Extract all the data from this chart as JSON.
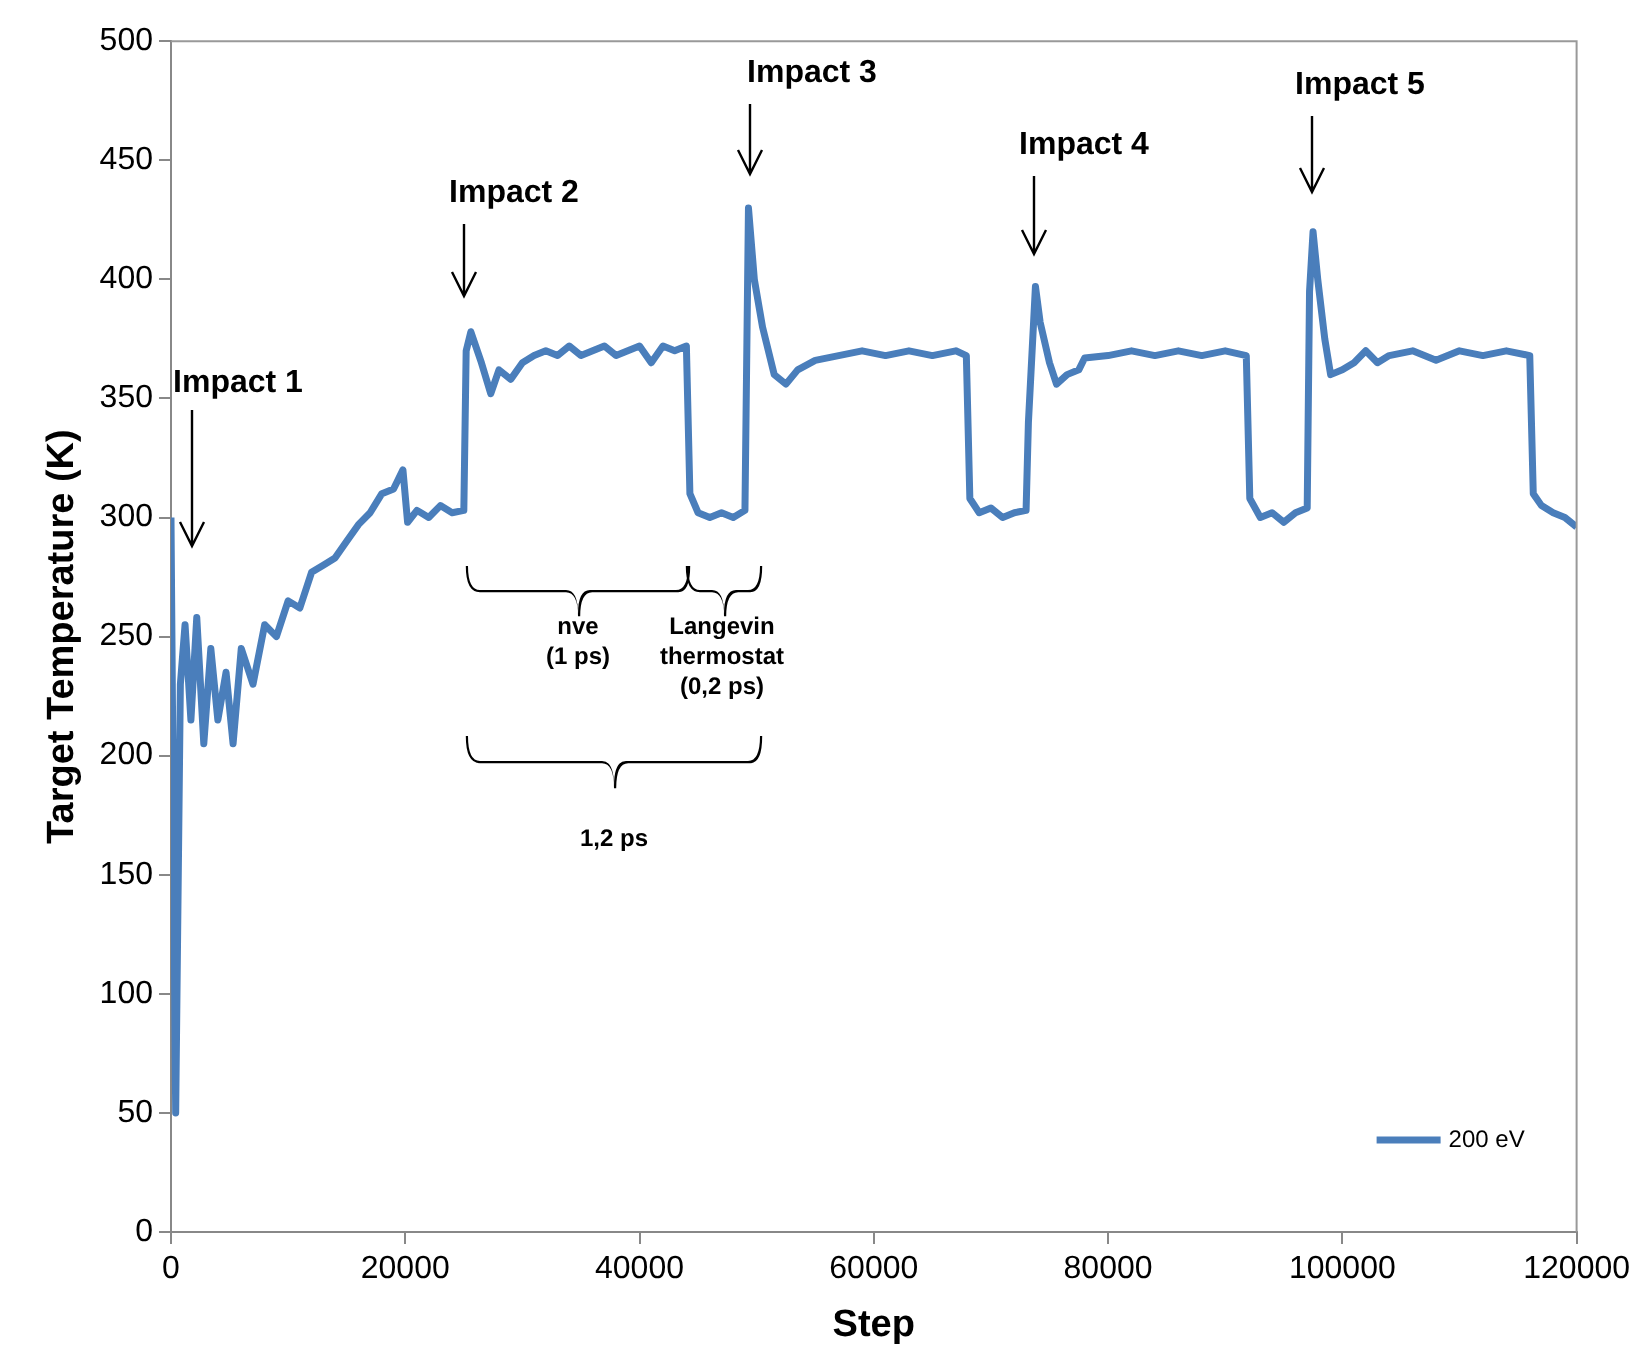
{
  "chart_data": {
    "type": "line",
    "xlabel": "Step",
    "ylabel": "Target Temperature (K)",
    "xlim": [
      0,
      120000
    ],
    "xticks": [
      0,
      20000,
      40000,
      60000,
      80000,
      100000,
      120000
    ],
    "ylim": [
      0,
      500
    ],
    "yticks": [
      0,
      50,
      100,
      150,
      200,
      250,
      300,
      350,
      400,
      450,
      500
    ],
    "grid": false,
    "legend": "bottom right",
    "marker": "none",
    "line_style": "solid",
    "x": [
      0,
      400,
      800,
      1200,
      1700,
      2200,
      2800,
      3400,
      4000,
      4700,
      5300,
      6000,
      7000,
      8000,
      9000,
      10000,
      11000,
      12000,
      13000,
      14000,
      15000,
      16000,
      17000,
      18000,
      19000,
      19800,
      20200,
      21000,
      22000,
      23000,
      24000,
      25000,
      25200,
      25600,
      26500,
      27300,
      28000,
      29000,
      30000,
      31000,
      32000,
      33000,
      34000,
      35000,
      36000,
      37000,
      38000,
      39000,
      40000,
      41000,
      42000,
      43000,
      44000,
      44300,
      45000,
      46000,
      47000,
      48000,
      49000,
      49300,
      49800,
      50500,
      51500,
      52500,
      53500,
      55000,
      57000,
      59000,
      61000,
      63000,
      65000,
      67000,
      67900,
      68200,
      69000,
      70000,
      71000,
      72000,
      73000,
      73200,
      73800,
      74200,
      75000,
      75600,
      76500,
      77500,
      78000,
      80000,
      82000,
      84000,
      86000,
      88000,
      90000,
      91800,
      92100,
      93000,
      94000,
      95000,
      96000,
      97000,
      97200,
      97500,
      97900,
      98500,
      99000,
      100000,
      101000,
      102000,
      103000,
      104000,
      106000,
      108000,
      110000,
      112000,
      114000,
      116000,
      116300,
      117000,
      118000,
      119000,
      120000
    ],
    "series": [
      {
        "name": "200 eV",
        "color": "#4a7ebb",
        "values": [
          300,
          50,
          230,
          255,
          215,
          258,
          205,
          245,
          215,
          235,
          205,
          245,
          230,
          255,
          250,
          265,
          262,
          277,
          280,
          283,
          290,
          297,
          302,
          310,
          312,
          320,
          298,
          303,
          300,
          305,
          302,
          303,
          370,
          378,
          365,
          352,
          362,
          358,
          365,
          368,
          370,
          368,
          372,
          368,
          370,
          372,
          368,
          370,
          372,
          365,
          372,
          370,
          372,
          310,
          302,
          300,
          302,
          300,
          303,
          430,
          400,
          380,
          360,
          356,
          362,
          366,
          368,
          370,
          368,
          370,
          368,
          370,
          368,
          308,
          302,
          304,
          300,
          302,
          303,
          340,
          397,
          382,
          365,
          356,
          360,
          362,
          367,
          368,
          370,
          368,
          370,
          368,
          370,
          368,
          308,
          300,
          302,
          298,
          302,
          304,
          395,
          420,
          400,
          375,
          360,
          362,
          365,
          370,
          365,
          368,
          370,
          366,
          370,
          368,
          370,
          368,
          310,
          305,
          302,
          300,
          296
        ]
      }
    ],
    "annotations": [
      "Impact 1",
      "Impact 2",
      "Impact 3",
      "Impact 4",
      "Impact 5",
      "nve\n(1 ps)",
      "Langevin\nthermostat\n(0,2 ps)",
      "1,2 ps"
    ]
  }
}
